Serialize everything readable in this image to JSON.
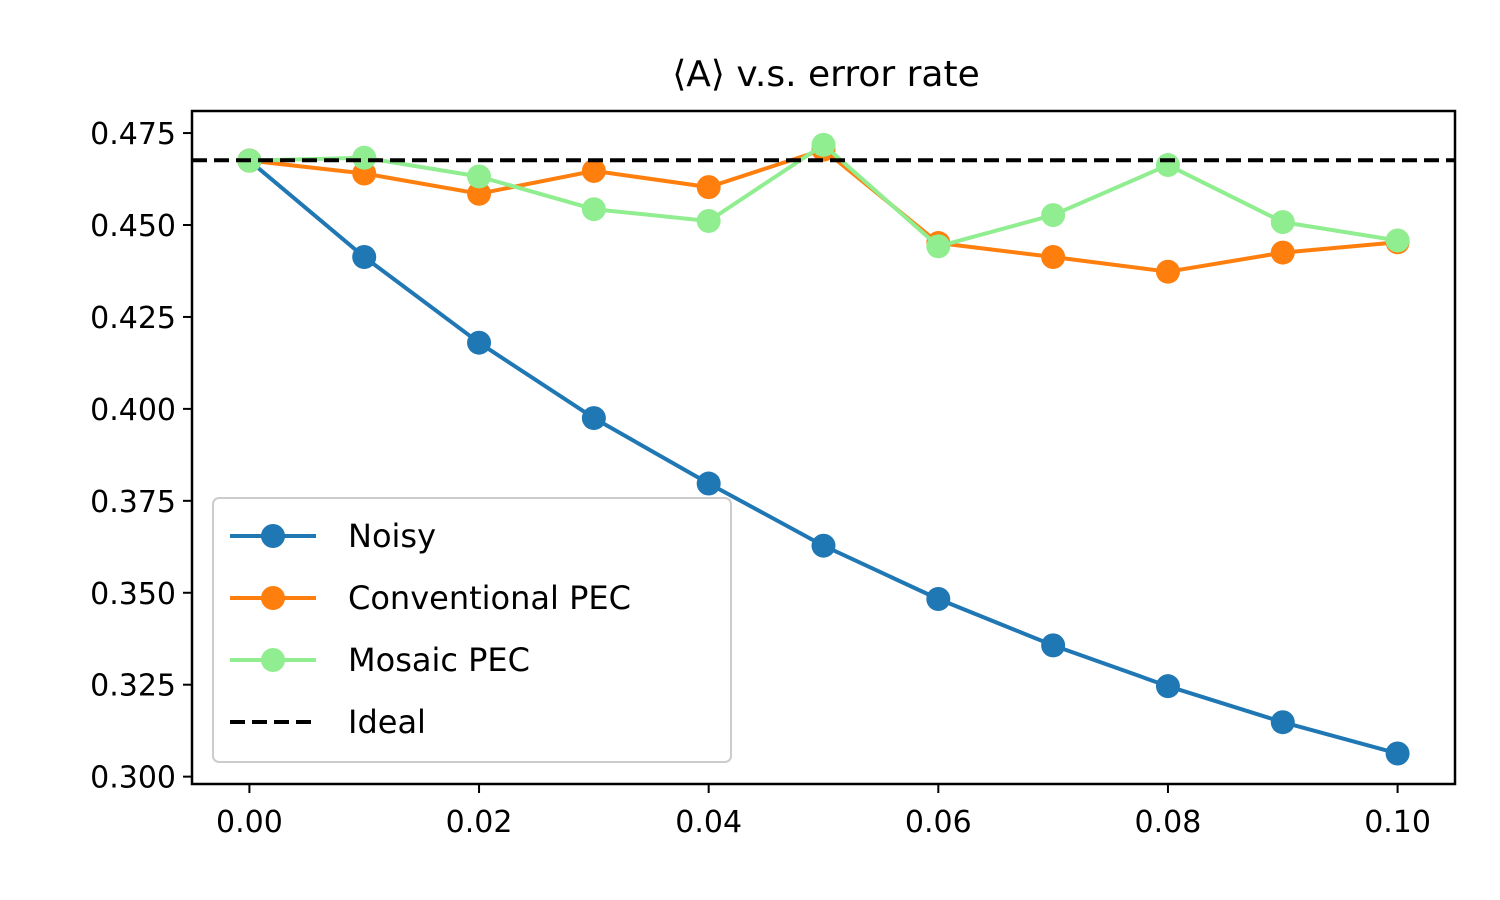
{
  "chart_data": {
    "type": "line",
    "title": "⟨A⟩ v.s. error rate",
    "xlabel": "",
    "ylabel": "",
    "x": [
      0.0,
      0.01,
      0.02,
      0.03,
      0.04,
      0.05,
      0.06,
      0.07,
      0.08,
      0.09,
      0.1
    ],
    "xlim": [
      -0.005,
      0.105
    ],
    "ylim": [
      0.298,
      0.481
    ],
    "x_ticks": [
      "0.00",
      "0.02",
      "0.04",
      "0.06",
      "0.08",
      "0.10"
    ],
    "x_tick_values": [
      0.0,
      0.02,
      0.04,
      0.06,
      0.08,
      0.1
    ],
    "y_ticks": [
      "0.300",
      "0.325",
      "0.350",
      "0.375",
      "0.400",
      "0.425",
      "0.450",
      "0.475"
    ],
    "y_tick_values": [
      0.3,
      0.325,
      0.35,
      0.375,
      0.4,
      0.425,
      0.45,
      0.475
    ],
    "grid": false,
    "legend_position": "lower-left",
    "series": [
      {
        "name": "Noisy",
        "color": "#1f77b4",
        "style": "solid-marker",
        "values": [
          0.4675,
          0.4413,
          0.418,
          0.3975,
          0.3797,
          0.3628,
          0.3483,
          0.3357,
          0.3246,
          0.3148,
          0.3063
        ]
      },
      {
        "name": "Conventional PEC",
        "color": "#ff7f0e",
        "style": "solid-marker",
        "values": [
          0.4675,
          0.464,
          0.4585,
          0.4647,
          0.4603,
          0.4705,
          0.4451,
          0.4413,
          0.4373,
          0.4425,
          0.4453
        ]
      },
      {
        "name": "Mosaic PEC",
        "color": "#90ee90",
        "style": "solid-marker",
        "values": [
          0.4675,
          0.4683,
          0.4632,
          0.4543,
          0.4511,
          0.4718,
          0.4442,
          0.4527,
          0.4663,
          0.4508,
          0.4458
        ]
      },
      {
        "name": "Ideal",
        "color": "#000000",
        "style": "dashed",
        "constant": 0.4676
      }
    ]
  }
}
